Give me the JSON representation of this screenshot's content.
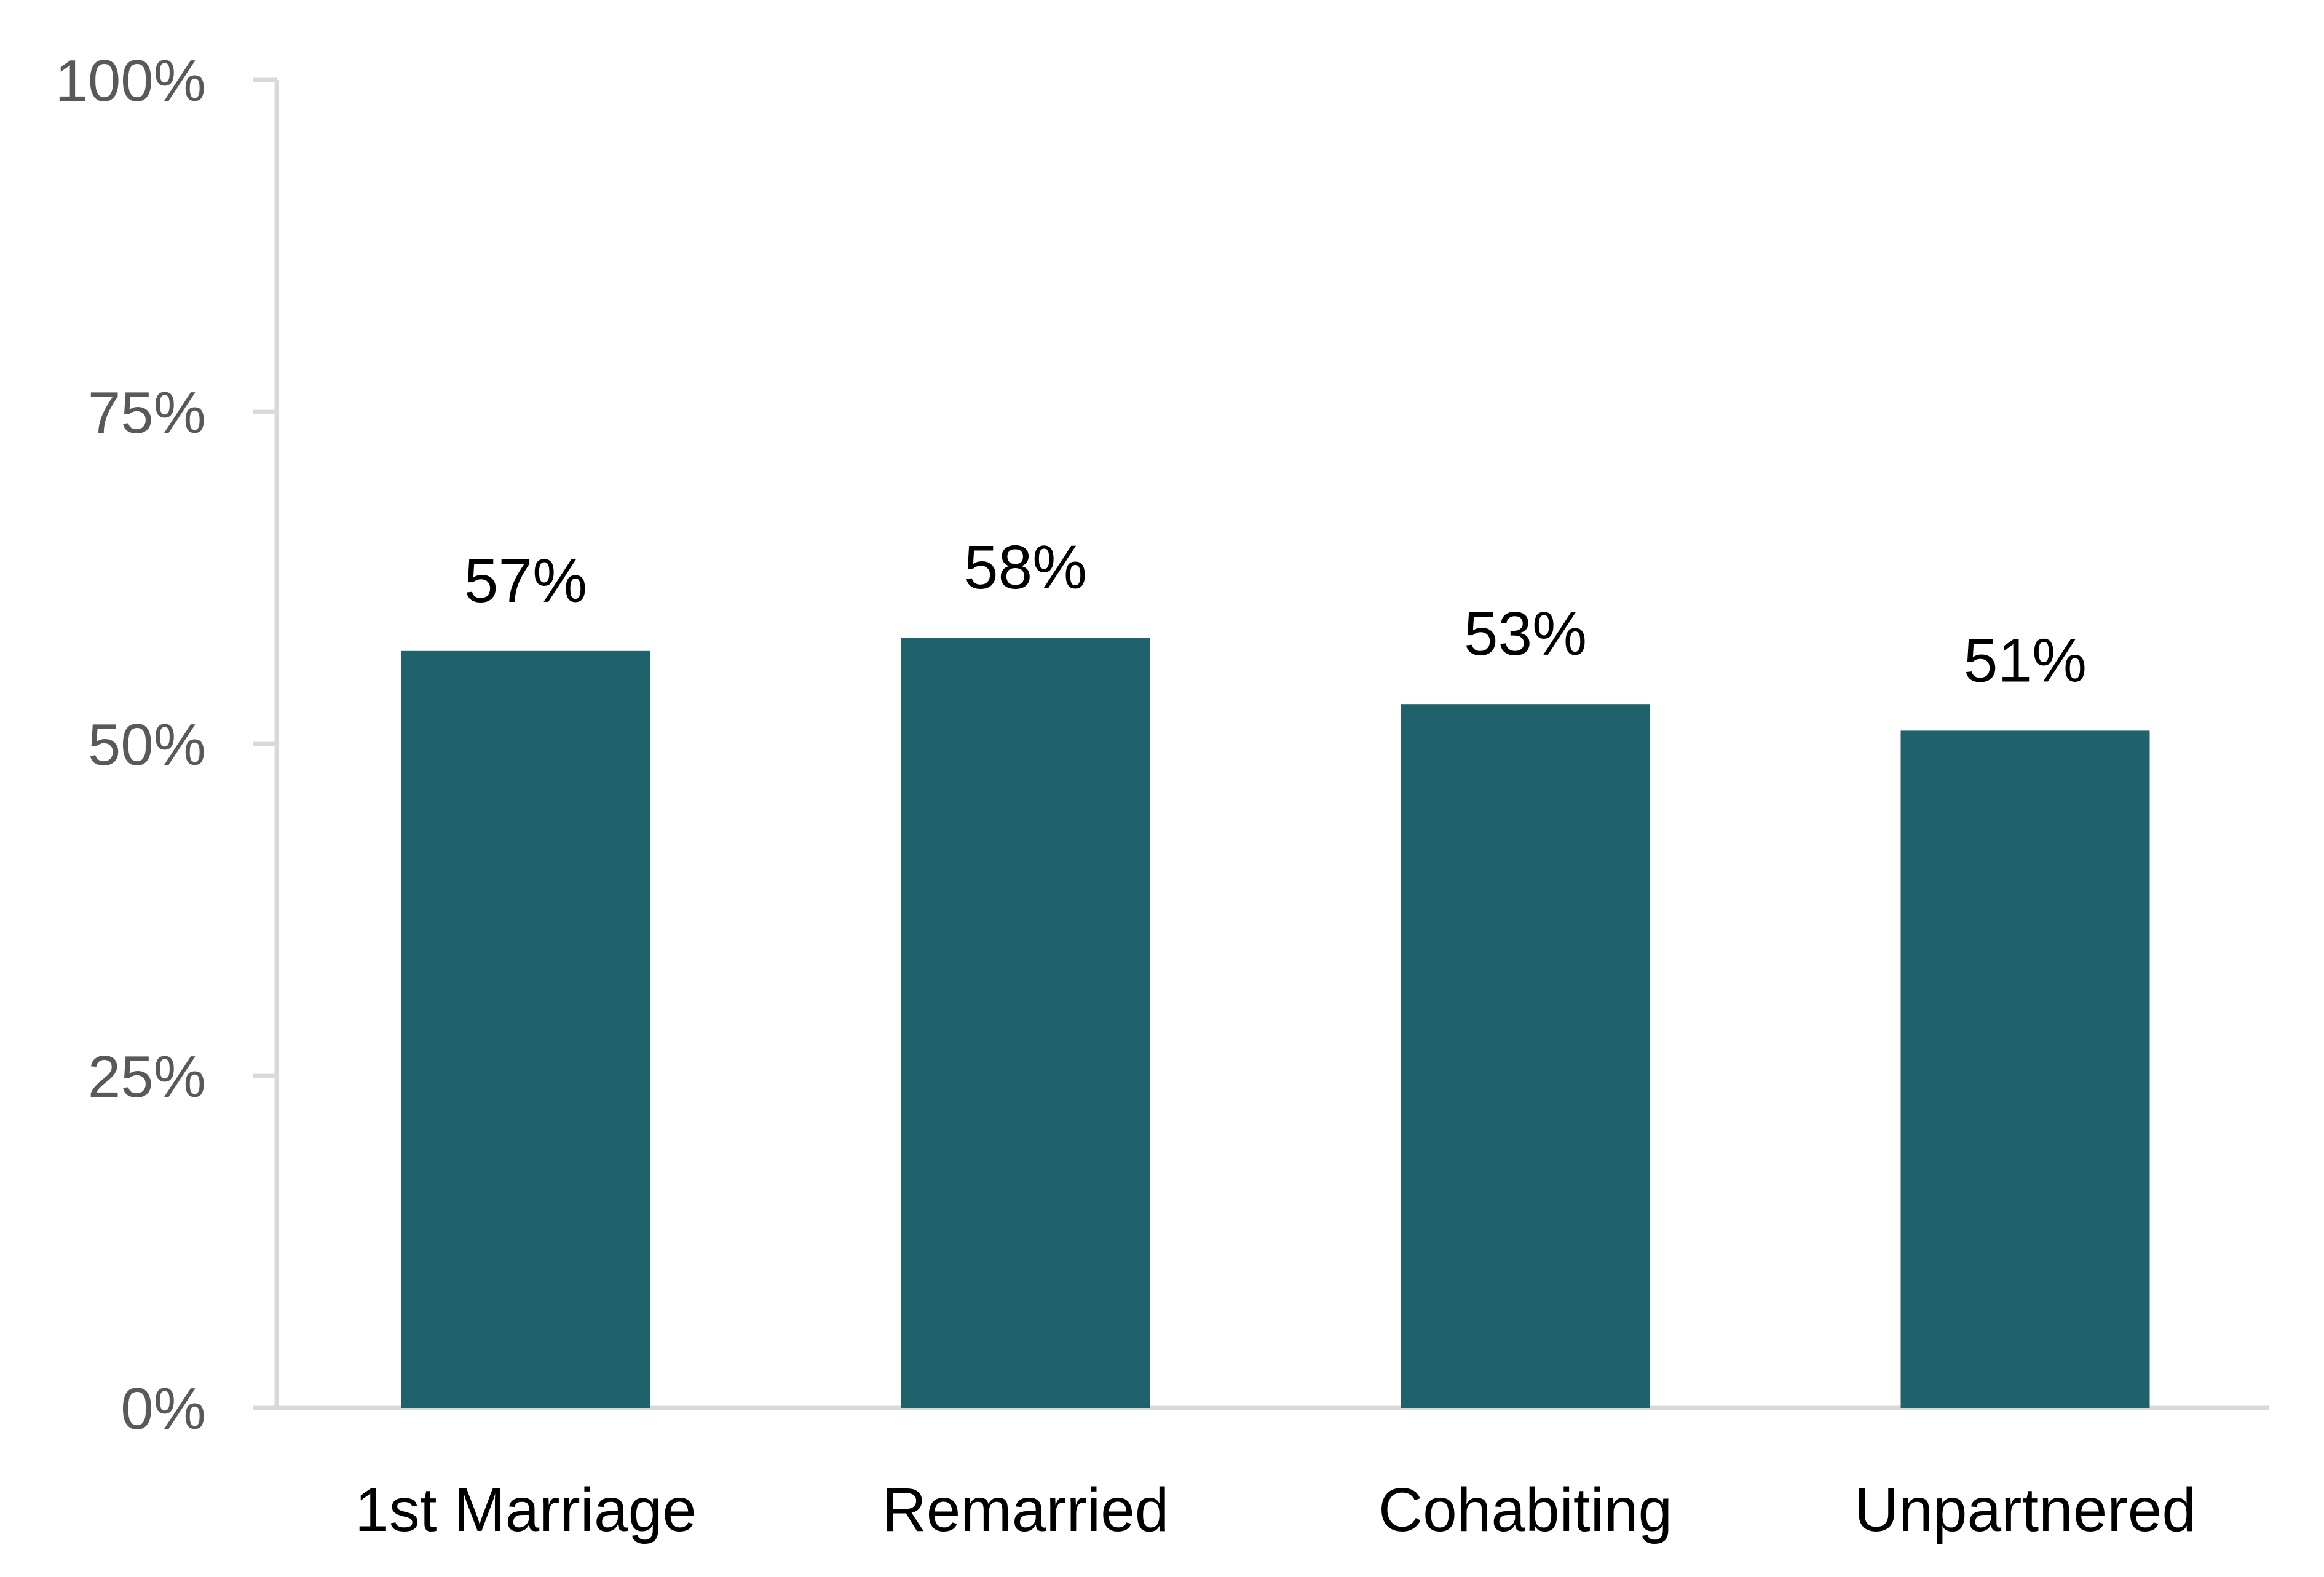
{
  "chart_data": {
    "type": "bar",
    "categories": [
      "1st Marriage",
      "Remarried",
      "Cohabiting",
      "Unpartnered"
    ],
    "values": [
      57,
      58,
      53,
      51
    ],
    "data_labels": [
      "57%",
      "58%",
      "53%",
      "51%"
    ],
    "ylim": [
      0,
      100
    ],
    "yticks": [
      0,
      25,
      50,
      75,
      100
    ],
    "ytick_labels": [
      "0%",
      "25%",
      "50%",
      "75%",
      "100%"
    ],
    "title": "",
    "xlabel": "",
    "ylabel": "",
    "grid": false,
    "legend": "none",
    "colors": {
      "bar": "#1f626c",
      "axis": "#d9d9d9",
      "tick_text": "#595959",
      "label_text": "#000000"
    }
  }
}
